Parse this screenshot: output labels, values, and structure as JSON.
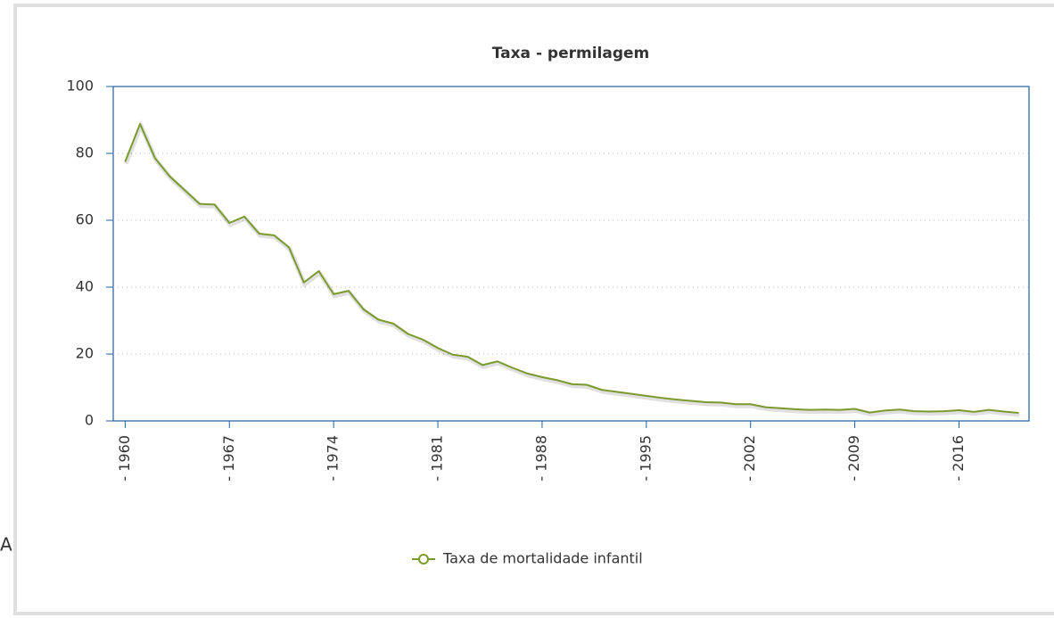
{
  "side_text": "A",
  "chart_data": {
    "type": "line",
    "title": "Taxa - permilagem",
    "x": [
      1960,
      1961,
      1962,
      1963,
      1964,
      1965,
      1966,
      1967,
      1968,
      1969,
      1970,
      1971,
      1972,
      1973,
      1974,
      1975,
      1976,
      1977,
      1978,
      1979,
      1980,
      1981,
      1982,
      1983,
      1984,
      1985,
      1986,
      1987,
      1988,
      1989,
      1990,
      1991,
      1992,
      1993,
      1994,
      1995,
      1996,
      1997,
      1998,
      1999,
      2000,
      2001,
      2002,
      2003,
      2004,
      2005,
      2006,
      2007,
      2008,
      2009,
      2010,
      2011,
      2012,
      2013,
      2014,
      2015,
      2016,
      2017,
      2018,
      2019,
      2020
    ],
    "series": [
      {
        "name": "Taxa de mortalidade infantil",
        "color": "#7a9a2e",
        "values": [
          77.5,
          88.8,
          78.6,
          73.1,
          69.0,
          64.9,
          64.7,
          59.2,
          61.1,
          56.0,
          55.5,
          51.9,
          41.4,
          44.8,
          37.9,
          38.9,
          33.4,
          30.3,
          29.1,
          26.0,
          24.3,
          21.8,
          19.8,
          19.2,
          16.7,
          17.8,
          15.9,
          14.2,
          13.1,
          12.2,
          11.0,
          10.8,
          9.3,
          8.7,
          8.1,
          7.5,
          6.9,
          6.4,
          6.0,
          5.6,
          5.5,
          5.0,
          5.0,
          4.1,
          3.8,
          3.5,
          3.3,
          3.4,
          3.3,
          3.6,
          2.5,
          3.1,
          3.4,
          2.9,
          2.8,
          2.9,
          3.2,
          2.7,
          3.3,
          2.8,
          2.4
        ]
      }
    ],
    "xlim": [
      1959.2,
      2020.7
    ],
    "xticks": [
      {
        "value": 1960,
        "label": "- 1960"
      },
      {
        "value": 1967,
        "label": "- 1967"
      },
      {
        "value": 1974,
        "label": "- 1974"
      },
      {
        "value": 1981,
        "label": "- 1981"
      },
      {
        "value": 1988,
        "label": "- 1988"
      },
      {
        "value": 1995,
        "label": "- 1995"
      },
      {
        "value": 2002,
        "label": "- 2002"
      },
      {
        "value": 2009,
        "label": "- 2009"
      },
      {
        "value": 2016,
        "label": "- 2016"
      }
    ],
    "ylim": [
      0,
      100
    ],
    "yticks": [
      0,
      20,
      40,
      60,
      80,
      100
    ],
    "grid": true
  }
}
